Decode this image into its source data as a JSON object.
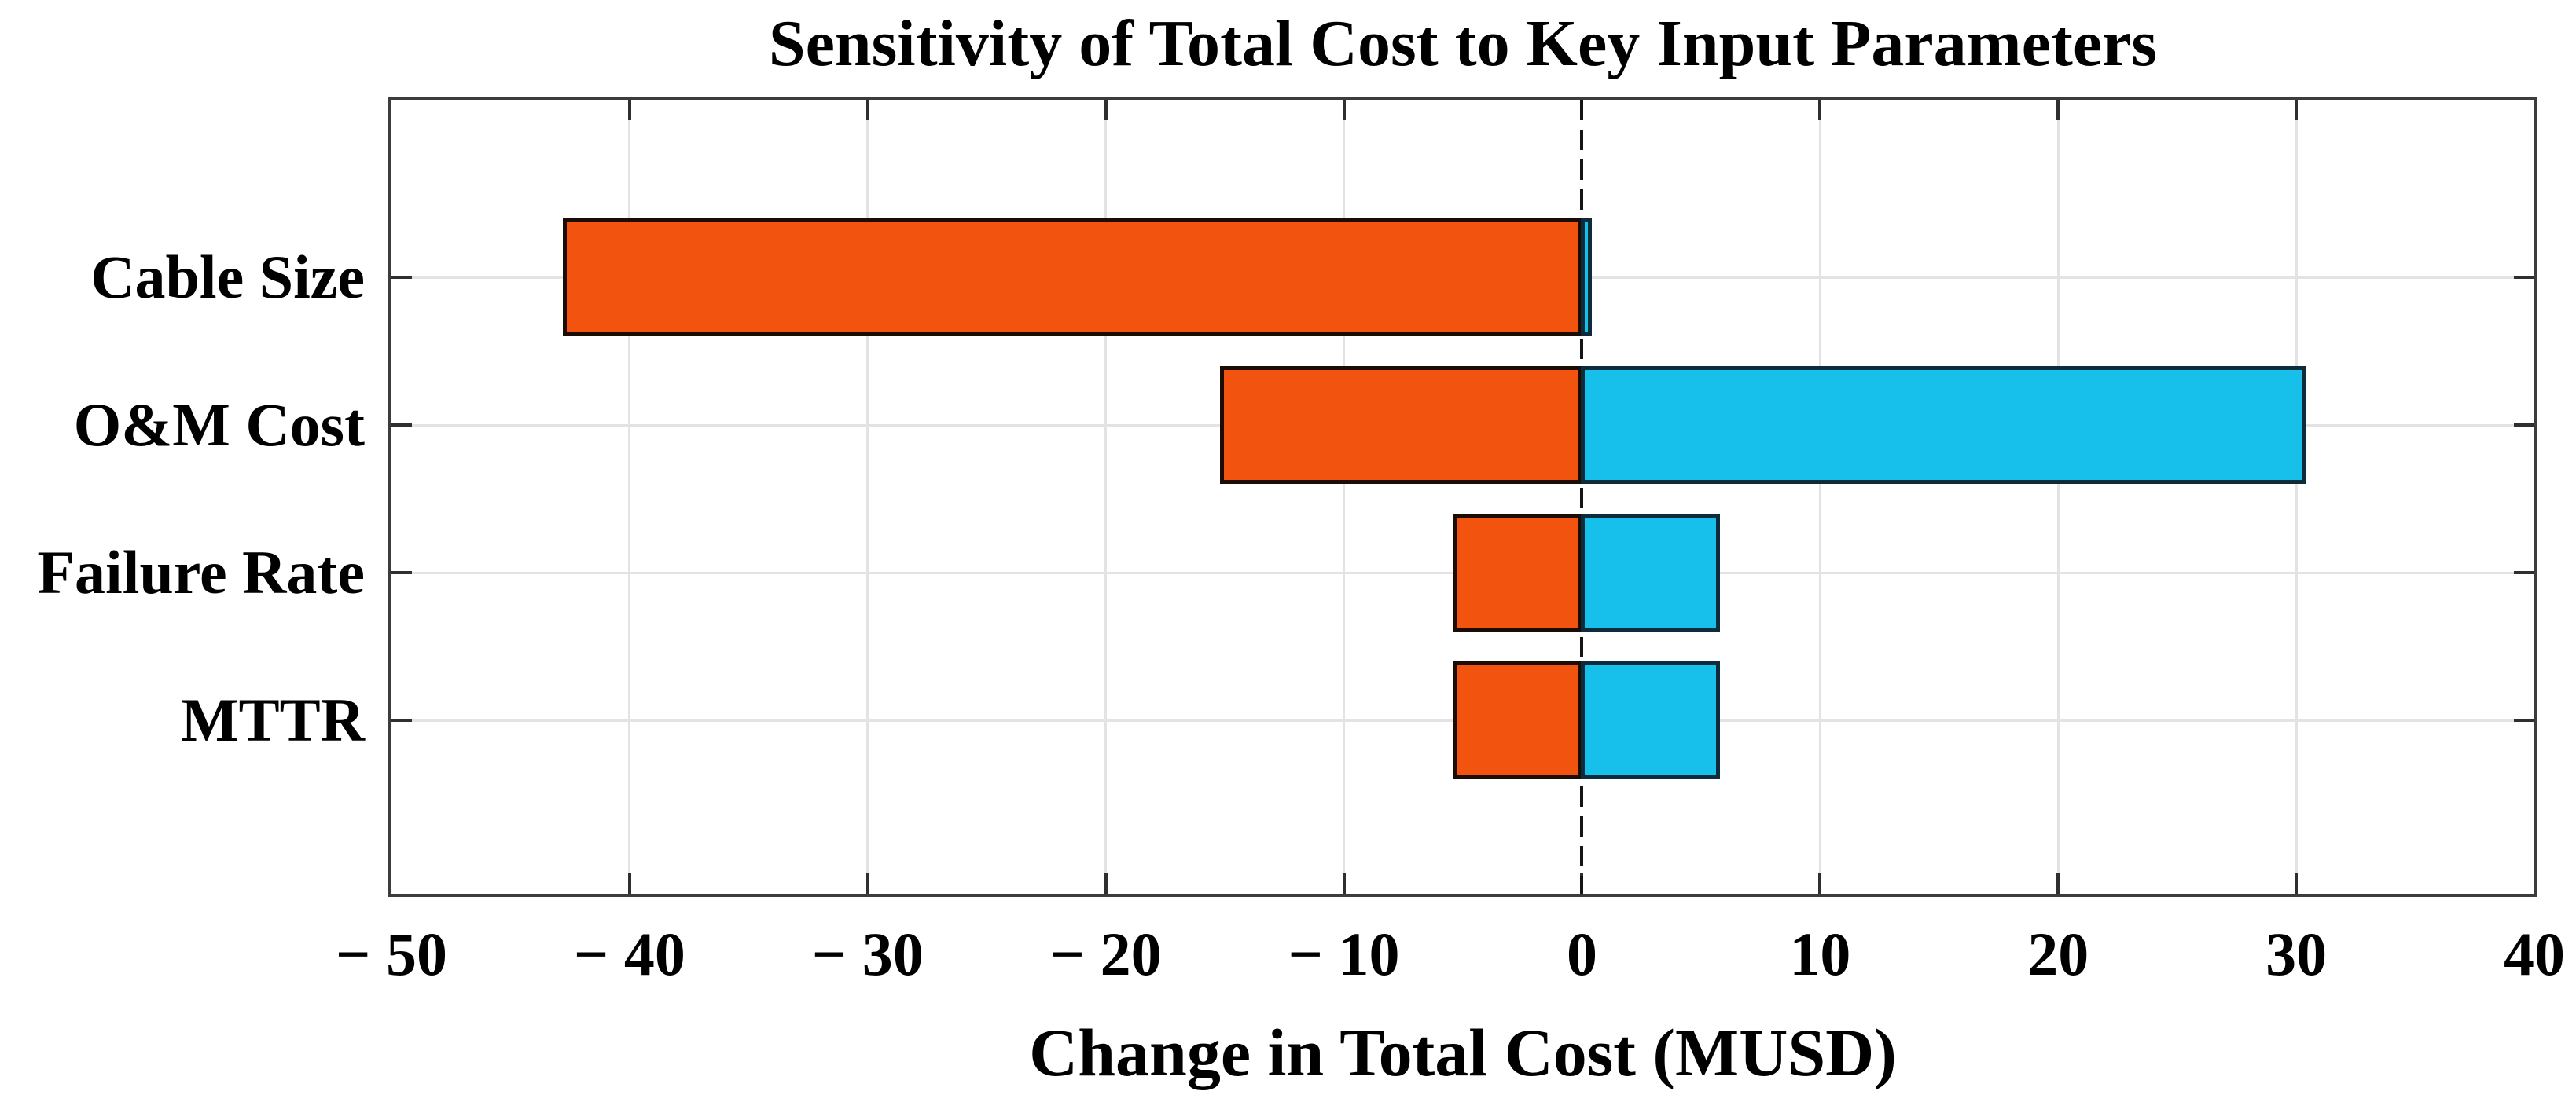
{
  "chart_data": {
    "type": "bar",
    "orientation": "horizontal",
    "variant": "diverging-tornado",
    "title": "Sensitivity of Total Cost to Key Input Parameters",
    "xlabel": "Change in Total Cost (MUSD)",
    "ylabel": "",
    "categories": [
      "Cable Size",
      "O&M Cost",
      "Failure Rate",
      "MTTR"
    ],
    "series": [
      {
        "name": "negative_change",
        "color": "#F2540F",
        "border_color": "#1C0D04",
        "values": [
          -42.8,
          -15.2,
          -5.4,
          -5.4
        ]
      },
      {
        "name": "positive_change",
        "color": "#17BFEB",
        "border_color": "#0C2B3B",
        "values": [
          0.4,
          30.4,
          5.8,
          5.8
        ]
      }
    ],
    "xlim": [
      -50,
      40
    ],
    "xticks": [
      -50,
      -40,
      -30,
      -20,
      -10,
      0,
      10,
      20,
      30,
      40
    ],
    "xtick_labels": [
      "− 50",
      "− 40",
      "− 30",
      "− 20",
      "− 10",
      "0",
      "10",
      "20",
      "30",
      "40"
    ],
    "grid": true,
    "gridline_color": "#E3E3E3",
    "axis_color": "#3C3C3C",
    "zero_line_style": "dashed",
    "zero_line_color": "#141414",
    "legend": "none"
  }
}
